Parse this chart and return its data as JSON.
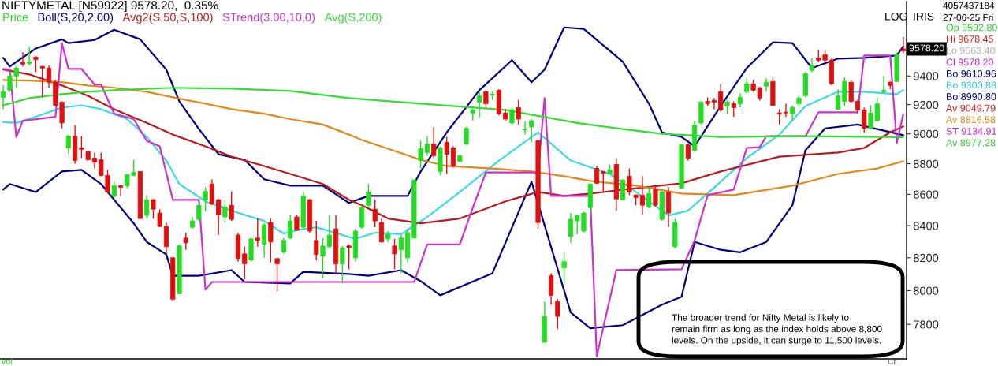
{
  "chart_data": {
    "type": "candlestick",
    "title": "NIFTYMETAL [N59922] 9578.20,  0.35%",
    "log": true,
    "categories": [
      null,
      null,
      null,
      null,
      null,
      null,
      null,
      null,
      null,
      null,
      null,
      null,
      null,
      null,
      null,
      null,
      null,
      null,
      null,
      null,
      null,
      null,
      null,
      null,
      null,
      null,
      null,
      null,
      null,
      null,
      null,
      null,
      null,
      null,
      null,
      null,
      null,
      null,
      null,
      null,
      null,
      null,
      null,
      null,
      null,
      null,
      null,
      null,
      null,
      null,
      null,
      null,
      null,
      null,
      null,
      null,
      null,
      null,
      null,
      null,
      null,
      null,
      null,
      null,
      null,
      null,
      null,
      null,
      null,
      null,
      null,
      null,
      null,
      null,
      null,
      null,
      null,
      null,
      null,
      null,
      null,
      null,
      null,
      null,
      null,
      null,
      null,
      null,
      null,
      null,
      null,
      null,
      null,
      null,
      null,
      null,
      null,
      null,
      null,
      null,
      null,
      null,
      null,
      null,
      null,
      null,
      null,
      null,
      null,
      null,
      null,
      null,
      null,
      null,
      null,
      null,
      null,
      null,
      null,
      null,
      null,
      null,
      null,
      null,
      null,
      null,
      null,
      null,
      null,
      null,
      null,
      null,
      null,
      null,
      null,
      null,
      null,
      null,
      null
    ],
    "ylim": [
      7600,
      9940
    ],
    "yticks": [
      7800,
      8000,
      8200,
      8400,
      8600,
      8800,
      9000,
      9200,
      9400
    ],
    "series": [
      {
        "name": "Price",
        "color": "#22dd22",
        "colors": [
          "#22dd22",
          "#22dd22",
          "#22dd22",
          "#e01010",
          "#22dd22",
          "#e01010",
          "#e01010",
          "#e01010",
          "#e01010",
          "#e01010",
          "#22dd22",
          "#e01010",
          "#e01010",
          "#e01010",
          "#e01010",
          "#e01010",
          "#e01010",
          "#22dd22",
          "#e01010",
          "#22dd22",
          "#22dd22",
          "#e01010",
          "#22dd22",
          "#e01010",
          "#e01010",
          "#e01010",
          "#e01010",
          "#22dd22",
          "#e01010",
          "#22dd22",
          "#22dd22",
          "#22dd22",
          "#e01010",
          "#e01010",
          "#22dd22",
          "#e01010",
          "#e01010",
          "#e01010",
          "#22dd22",
          "#e01010",
          "#22dd22",
          "#e01010",
          "#e01010",
          "#22dd22",
          "#22dd22",
          "#e01010",
          "#22dd22",
          "#e01010",
          "#e01010",
          "#22dd22",
          "#22dd22",
          "#e01010",
          "#22dd22",
          "#e01010",
          "#22dd22",
          "#22dd22",
          "#22dd22",
          "#e01010",
          "#e01010",
          "#22dd22",
          "#e01010",
          "#22dd22",
          "#22dd22",
          "#22dd22",
          "#22dd22",
          "#22dd22",
          "#e01010",
          "#22dd22",
          "#e01010",
          "#e01010",
          "#22dd22",
          "#22dd22",
          "#22dd22",
          "#22dd22",
          "#e01010",
          "#22dd22",
          "#e01010",
          "#e01010",
          "#22dd22",
          "#e01010",
          "#22dd22",
          "#22dd22",
          "#e01010",
          "#22dd22",
          "#e01010",
          "#e01010",
          "#22dd22",
          "#22dd22",
          "#22dd22",
          "#22dd22",
          "#22dd22",
          "#e01010",
          "#e01010",
          "#22dd22",
          "#e01010",
          "#22dd22",
          "#e01010",
          "#e01010",
          "#e01010",
          "#22dd22",
          "#e01010",
          "#22dd22",
          "#e01010",
          "#22dd22",
          "#22dd22",
          "#e01010",
          "#22dd22",
          "#22dd22",
          "#e01010",
          "#e01010",
          "#e01010",
          "#22dd22",
          "#e01010",
          "#22dd22",
          "#22dd22",
          "#e01010",
          "#e01010",
          "#22dd22",
          "#e01010",
          "#e01010",
          "#e01010",
          "#22dd22",
          "#22dd22",
          "#22dd22",
          "#22dd22",
          "#e01010",
          "#e01010",
          "#e01010",
          "#22dd22",
          "#22dd22",
          "#e01010",
          "#e01010",
          "#e01010",
          "#22dd22",
          "#22dd22",
          "#22dd22",
          "#e01010",
          "#22dd22",
          "#e01010"
        ],
        "ohlc": [
          [
            9250,
            9333,
            9168,
            9289
          ],
          [
            9300,
            9417,
            9289,
            9400
          ],
          [
            9400,
            9467,
            9317,
            9456
          ],
          [
            9500,
            9568,
            9467,
            9484
          ],
          [
            9489,
            9607,
            9473,
            9500
          ],
          [
            9534,
            9540,
            9428,
            9517
          ],
          [
            9467,
            9473,
            9250,
            9456
          ],
          [
            9456,
            9473,
            9317,
            9356
          ],
          [
            9356,
            9372,
            9190,
            9195
          ],
          [
            9217,
            9222,
            9037,
            9074
          ],
          [
            8905,
            8995,
            8863,
            8984
          ],
          [
            8984,
            9058,
            8800,
            8821
          ],
          [
            8905,
            8984,
            8837,
            8895
          ],
          [
            8879,
            8889,
            8821,
            8826
          ],
          [
            8837,
            8874,
            8769,
            8810
          ],
          [
            8826,
            8874,
            8718,
            8723
          ],
          [
            8723,
            8759,
            8605,
            8615
          ],
          [
            8590,
            8682,
            8580,
            8656
          ],
          [
            8656,
            8656,
            8590,
            8646
          ],
          [
            8656,
            8733,
            8641,
            8728
          ],
          [
            8723,
            8826,
            8718,
            8743
          ],
          [
            8749,
            8749,
            8440,
            8445
          ],
          [
            8465,
            8595,
            8445,
            8565
          ],
          [
            8565,
            8570,
            8445,
            8505
          ],
          [
            8480,
            8505,
            8390,
            8395
          ],
          [
            8395,
            8420,
            8220,
            8268
          ],
          [
            8200,
            8200,
            7940,
            7949
          ],
          [
            7981,
            8283,
            7981,
            8273
          ],
          [
            8322,
            8356,
            8249,
            8293
          ],
          [
            8390,
            8455,
            8380,
            8430
          ],
          [
            8440,
            8540,
            8430,
            8530
          ],
          [
            8565,
            8646,
            8490,
            8620
          ],
          [
            8667,
            8698,
            8530,
            8540
          ],
          [
            8565,
            8570,
            8341,
            8470
          ],
          [
            8455,
            8565,
            8420,
            8520
          ],
          [
            8530,
            8620,
            8430,
            8440
          ],
          [
            8341,
            8356,
            8176,
            8195
          ],
          [
            8224,
            8268,
            8067,
            8162
          ],
          [
            8186,
            8322,
            8176,
            8317
          ],
          [
            8322,
            8445,
            8268,
            8307
          ],
          [
            8283,
            8415,
            8200,
            8405
          ],
          [
            8420,
            8445,
            8171,
            8298
          ],
          [
            8195,
            8195,
            7995,
            8162
          ],
          [
            8234,
            8322,
            8224,
            8307
          ],
          [
            8322,
            8470,
            8317,
            8430
          ],
          [
            8455,
            8470,
            8366,
            8371
          ],
          [
            8390,
            8620,
            8380,
            8590
          ],
          [
            8565,
            8570,
            8356,
            8366
          ],
          [
            8307,
            8430,
            8186,
            8220
          ],
          [
            8210,
            8322,
            8076,
            8273
          ],
          [
            8268,
            8465,
            8259,
            8341
          ],
          [
            8380,
            8465,
            8100,
            8162
          ],
          [
            8162,
            8273,
            8043,
            8259
          ],
          [
            8273,
            8283,
            8129,
            8263
          ],
          [
            8200,
            8380,
            8176,
            8366
          ],
          [
            8390,
            8530,
            8380,
            8515
          ],
          [
            8530,
            8667,
            8520,
            8615
          ],
          [
            8505,
            8565,
            8390,
            8430
          ],
          [
            8420,
            8445,
            8293,
            8298
          ],
          [
            8317,
            8366,
            8298,
            8346
          ],
          [
            8273,
            8317,
            8129,
            8224
          ],
          [
            8249,
            8341,
            8105,
            8322
          ],
          [
            8200,
            8380,
            8171,
            8356
          ],
          [
            8322,
            8698,
            8322,
            8693
          ],
          [
            8821,
            8953,
            8769,
            8900
          ],
          [
            8874,
            8984,
            8853,
            8932
          ],
          [
            8932,
            9047,
            8837,
            8853
          ],
          [
            8749,
            8916,
            8723,
            8905
          ],
          [
            8942,
            8979,
            8733,
            8863
          ],
          [
            8905,
            8916,
            8774,
            8785
          ],
          [
            8816,
            8863,
            8810,
            8853
          ],
          [
            8932,
            9047,
            8926,
            9037
          ],
          [
            9142,
            9190,
            9089,
            9163
          ],
          [
            9217,
            9289,
            9110,
            9261
          ],
          [
            9289,
            9300,
            9179,
            9206
          ],
          [
            9267,
            9289,
            9233,
            9273
          ],
          [
            9300,
            9306,
            9126,
            9137
          ],
          [
            9142,
            9168,
            9089,
            9100
          ],
          [
            9074,
            9179,
            9063,
            9163
          ],
          [
            9179,
            9233,
            9063,
            9100
          ],
          [
            9026,
            9084,
            8995,
            9032
          ],
          [
            9047,
            9100,
            8942,
            9089
          ],
          [
            8953,
            8958,
            8380,
            8420
          ],
          [
            7695,
            7935,
            7695,
            7847
          ],
          [
            8090,
            8105,
            7916,
            7972
          ],
          [
            7935,
            7949,
            7772,
            7847
          ],
          [
            8138,
            8234,
            8043,
            8176
          ],
          [
            8332,
            8480,
            8293,
            8440
          ],
          [
            8430,
            8470,
            8346,
            8465
          ],
          [
            8366,
            8490,
            8356,
            8480
          ],
          [
            8515,
            8667,
            8480,
            8667
          ],
          [
            8769,
            8785,
            8667,
            8672
          ],
          [
            8749,
            8749,
            8621,
            8738
          ],
          [
            8733,
            8795,
            8733,
            8759
          ],
          [
            8795,
            8837,
            8495,
            8570
          ],
          [
            8565,
            8698,
            8560,
            8693
          ],
          [
            8718,
            8769,
            8595,
            8615
          ],
          [
            8595,
            8600,
            8530,
            8580
          ],
          [
            8595,
            8718,
            8470,
            8530
          ],
          [
            8520,
            8646,
            8510,
            8605
          ],
          [
            8636,
            8656,
            8520,
            8530
          ],
          [
            8440,
            8620,
            8430,
            8615
          ],
          [
            8615,
            8646,
            8390,
            8480
          ],
          [
            8268,
            8445,
            8259,
            8420
          ],
          [
            8641,
            8932,
            8636,
            8926
          ],
          [
            8926,
            8932,
            8821,
            8837
          ],
          [
            8889,
            9089,
            8879,
            9058
          ],
          [
            9074,
            9222,
            9063,
            9217
          ],
          [
            9222,
            9250,
            9190,
            9206
          ],
          [
            9228,
            9245,
            9168,
            9217
          ],
          [
            9289,
            9345,
            9152,
            9163
          ],
          [
            9190,
            9233,
            9137,
            9217
          ],
          [
            9206,
            9222,
            9116,
            9179
          ],
          [
            9206,
            9278,
            9179,
            9250
          ],
          [
            9289,
            9383,
            9273,
            9345
          ],
          [
            9345,
            9372,
            9289,
            9300
          ],
          [
            9317,
            9322,
            9228,
            9245
          ],
          [
            9328,
            9383,
            9289,
            9356
          ],
          [
            9361,
            9389,
            9190,
            9195
          ],
          [
            9142,
            9168,
            9063,
            9137
          ],
          [
            9148,
            9206,
            9116,
            9142
          ],
          [
            9137,
            9195,
            9089,
            9179
          ],
          [
            9206,
            9261,
            9179,
            9245
          ],
          [
            9261,
            9428,
            9250,
            9417
          ],
          [
            9439,
            9528,
            9428,
            9473
          ],
          [
            9528,
            9585,
            9500,
            9512
          ],
          [
            9551,
            9585,
            9500,
            9512
          ],
          [
            9512,
            9523,
            9333,
            9345
          ],
          [
            9168,
            9306,
            9163,
            9261
          ],
          [
            9222,
            9389,
            9190,
            9361
          ],
          [
            9356,
            9372,
            9211,
            9222
          ],
          [
            9222,
            9233,
            9137,
            9163
          ],
          [
            9163,
            9179,
            9010,
            9037
          ],
          [
            9037,
            9195,
            9032,
            9142
          ],
          [
            9089,
            9250,
            9084,
            9206
          ],
          [
            9289,
            9400,
            9278,
            9300
          ],
          [
            9356,
            9361,
            9306,
            9333
          ],
          [
            9361,
            9568,
            9361,
            9551
          ],
          [
            9592.8,
            9678.45,
            9563.4,
            9578.2
          ]
        ]
      },
      {
        "type": "line",
        "name": "Boll(S,20,2.00)",
        "color": "#00007f",
        "values": [
          9528,
          9467,
          null,
          null,
          null,
          9596,
          null,
          null,
          null,
          9662,
          9635,
          null,
          null,
          null,
          9657,
          null,
          null,
          9732,
          null,
          null,
          null,
          9662,
          null,
          null,
          null,
          9445,
          null,
          9222,
          null,
          null,
          9032,
          null,
          null,
          8863,
          null,
          null,
          null,
          8826,
          null,
          null,
          8698,
          null,
          null,
          null,
          8656,
          null,
          null,
          null,
          null,
          8656,
          null,
          null,
          null,
          8545,
          null,
          null,
          8590,
          null,
          null,
          null,
          null,
          null,
          8590,
          null,
          8749,
          null,
          null,
          null,
          9010,
          null,
          null,
          null,
          null,
          9300,
          null,
          null,
          null,
          null,
          9512,
          null,
          null,
          9356,
          null,
          9445,
          null,
          null,
          9749,
          null,
          null,
          9738,
          null,
          null,
          null,
          null,
          null,
          9500,
          null,
          null,
          null,
          9206,
          null,
          9010,
          null,
          null,
          8979,
          null,
          8916,
          null,
          null,
          null,
          9190,
          null,
          null,
          null,
          9456,
          null,
          null,
          null,
          9640,
          null,
          null,
          9635,
          null,
          null,
          9456,
          null,
          null,
          null,
          9523,
          null,
          null,
          null,
          9528,
          null,
          null,
          null,
          null,
          9545,
          9612
        ]
      },
      {
        "type": "line",
        "color": "#3fd9e6",
        "values": [
          9079,
          null,
          9074,
          null,
          null,
          9116,
          null,
          null,
          null,
          9179,
          null,
          null,
          9195,
          null,
          null,
          9168,
          null,
          null,
          null,
          9100,
          null,
          null,
          8979,
          null,
          null,
          8821,
          null,
          8667,
          null,
          null,
          null,
          8555,
          null,
          null,
          null,
          8495,
          null,
          null,
          null,
          null,
          8430,
          null,
          null,
          8351,
          null,
          8371,
          null,
          null,
          8390,
          null,
          null,
          null,
          null,
          null,
          8317,
          null,
          null,
          8356,
          null,
          null,
          null,
          8346,
          null,
          null,
          null,
          8455,
          null,
          null,
          null,
          null,
          8615,
          null,
          null,
          null,
          null,
          null,
          8821,
          null,
          null,
          null,
          null,
          null,
          9010,
          null,
          null,
          null,
          null,
          8821,
          null,
          null,
          null,
          null,
          null,
          8733,
          null,
          null,
          null,
          8615,
          null,
          null,
          null,
          null,
          8465,
          null,
          null,
          8495,
          null,
          null,
          null,
          null,
          8682,
          null,
          null,
          null,
          8837,
          null,
          null,
          null,
          null,
          8995,
          null,
          null,
          null,
          9190,
          null,
          null,
          null,
          null,
          9289,
          null,
          null,
          null,
          9289,
          null,
          null,
          null,
          null,
          9272,
          9301
        ]
      },
      {
        "type": "line",
        "color": "#00007f",
        "values": [
          8631,
          8667,
          null,
          null,
          null,
          8615,
          null,
          null,
          null,
          8749,
          null,
          null,
          8759,
          null,
          null,
          8667,
          null,
          null,
          null,
          null,
          8415,
          null,
          8298,
          null,
          null,
          8220,
          8090,
          null,
          null,
          null,
          8090,
          null,
          null,
          null,
          null,
          8124,
          null,
          8052,
          null,
          null,
          null,
          null,
          null,
          null,
          8043,
          null,
          8114,
          null,
          null,
          null,
          null,
          null,
          null,
          8100,
          null,
          null,
          8090,
          null,
          null,
          null,
          null,
          8124,
          null,
          null,
          8057,
          null,
          null,
          7972,
          null,
          null,
          null,
          null,
          null,
          null,
          null,
          8105,
          null,
          null,
          null,
          null,
          null,
          8682,
          null,
          null,
          null,
          null,
          null,
          7870,
          null,
          null,
          7777,
          null,
          null,
          null,
          null,
          7795,
          null,
          null,
          null,
          null,
          null,
          7916,
          null,
          null,
          7963,
          null,
          8298,
          null,
          null,
          null,
          8249,
          null,
          null,
          8234,
          null,
          null,
          null,
          8298,
          null,
          null,
          null,
          8530,
          null,
          8889,
          null,
          null,
          9037,
          null,
          null,
          null,
          null,
          9063,
          null,
          null,
          9032,
          null,
          null,
          null,
          8991
        ]
      },
      {
        "type": "line",
        "name": "Avg2(S,50,S,100)",
        "color": "#b81c1c",
        "values": [
          9445,
          null,
          null,
          null,
          9411,
          null,
          null,
          null,
          null,
          9333,
          null,
          null,
          null,
          9261,
          null,
          null,
          null,
          9168,
          null,
          null,
          null,
          null,
          9074,
          null,
          null,
          null,
          8995,
          null,
          null,
          null,
          null,
          8916,
          null,
          null,
          null,
          8847,
          null,
          null,
          null,
          null,
          8785,
          null,
          null,
          null,
          8733,
          null,
          null,
          null,
          null,
          8667,
          null,
          null,
          null,
          8565,
          null,
          8530,
          null,
          null,
          null,
          8445,
          null,
          null,
          null,
          null,
          8415,
          null,
          null,
          null,
          null,
          null,
          8445,
          null,
          null,
          null,
          null,
          null,
          null,
          8555,
          null,
          null,
          null,
          null,
          8615,
          null,
          null,
          null,
          8590,
          null,
          null,
          null,
          8605,
          null,
          null,
          null,
          null,
          8630,
          null,
          null,
          null,
          null,
          null,
          null,
          null,
          null,
          8672,
          null,
          null,
          null,
          null,
          null,
          8749,
          null,
          null,
          null,
          null,
          null,
          null,
          null,
          null,
          8847,
          null,
          null,
          null,
          null,
          null,
          null,
          null,
          null,
          8874,
          null,
          null,
          null,
          8905,
          null,
          null,
          null,
          9010,
          null,
          9050
        ]
      },
      {
        "type": "line",
        "color": "#e0891c",
        "values": [
          9372,
          null,
          null,
          null,
          9367,
          null,
          null,
          null,
          null,
          9356,
          null,
          null,
          null,
          9333,
          null,
          null,
          null,
          9317,
          null,
          null,
          null,
          null,
          9289,
          null,
          null,
          null,
          9250,
          null,
          null,
          null,
          null,
          9206,
          null,
          null,
          null,
          9168,
          null,
          null,
          null,
          null,
          9137,
          null,
          null,
          null,
          9100,
          null,
          null,
          null,
          null,
          9063,
          null,
          null,
          null,
          8995,
          null,
          8958,
          null,
          null,
          null,
          8900,
          null,
          null,
          null,
          null,
          8826,
          null,
          null,
          null,
          8785,
          null,
          null,
          null,
          null,
          null,
          null,
          8769,
          null,
          null,
          null,
          null,
          null,
          8749,
          null,
          null,
          null,
          null,
          8718,
          null,
          null,
          null,
          8687,
          null,
          null,
          null,
          null,
          null,
          null,
          8656,
          null,
          null,
          null,
          null,
          null,
          null,
          8605,
          null,
          null,
          null,
          null,
          null,
          null,
          null,
          8595,
          null,
          null,
          null,
          null,
          null,
          null,
          null,
          null,
          8656,
          null,
          null,
          null,
          null,
          null,
          null,
          8733,
          null,
          null,
          null,
          null,
          null,
          8769,
          null,
          null,
          null,
          8817
        ]
      },
      {
        "type": "line",
        "name": "STrend(3.00,10,0)",
        "color": "#cc33cc",
        "values": [
          9450,
          9445,
          8979,
          9089,
          null,
          null,
          null,
          null,
          9116,
          9635,
          9450,
          null,
          9450,
          null,
          9339,
          9339,
          null,
          9137,
          null,
          null,
          9100,
          null,
          8953,
          null,
          8916,
          null,
          8565,
          null,
          null,
          null,
          8565,
          8005,
          8052,
          null,
          null,
          null,
          null,
          null,
          null,
          null,
          null,
          null,
          null,
          null,
          null,
          null,
          null,
          null,
          null,
          null,
          null,
          null,
          null,
          8052,
          null,
          null,
          null,
          null,
          null,
          null,
          null,
          null,
          null,
          8052,
          null,
          8283,
          null,
          null,
          null,
          null,
          8283,
          null,
          8515,
          null,
          8743,
          null,
          null,
          null,
          null,
          null,
          null,
          null,
          8743,
          9245,
          8590,
          null,
          null,
          null,
          null,
          null,
          8590,
          7615,
          null,
          null,
          8124,
          null,
          null,
          null,
          null,
          null,
          null,
          null,
          null,
          null,
          8129,
          null,
          8307,
          null,
          8595,
          null,
          null,
          null,
          8631,
          null,
          8905,
          null,
          8910,
          8984,
          null,
          null,
          null,
          null,
          null,
          8984,
          null,
          9147,
          null,
          null,
          null,
          null,
          null,
          9147,
          9545,
          null,
          null,
          null,
          9545,
          8937,
          9135
        ]
      },
      {
        "type": "line",
        "name": "Avg(S,200)",
        "color": "#33dd33",
        "values": [
          9195,
          null,
          null,
          null,
          9245,
          null,
          null,
          null,
          null,
          9272,
          null,
          null,
          null,
          9289,
          null,
          null,
          null,
          9300,
          null,
          null,
          null,
          null,
          null,
          null,
          null,
          null,
          9317,
          null,
          null,
          null,
          null,
          null,
          null,
          null,
          null,
          9311,
          null,
          null,
          null,
          null,
          null,
          null,
          null,
          null,
          9294,
          null,
          null,
          null,
          null,
          null,
          null,
          null,
          null,
          9245,
          null,
          null,
          null,
          null,
          null,
          null,
          null,
          null,
          null,
          null,
          9206,
          null,
          null,
          null,
          null,
          null,
          null,
          null,
          null,
          null,
          null,
          null,
          null,
          9163,
          null,
          null,
          null,
          null,
          null,
          null,
          null,
          null,
          null,
          null,
          9074,
          null,
          null,
          null,
          null,
          null,
          null,
          9032,
          null,
          null,
          null,
          null,
          null,
          9000,
          null,
          null,
          null,
          null,
          null,
          null,
          null,
          null,
          8979,
          null,
          null,
          null,
          null,
          null,
          null,
          null,
          null,
          null,
          null,
          null,
          null,
          8984,
          null,
          null,
          null,
          null,
          null,
          null,
          null,
          null,
          null,
          null,
          null,
          null,
          null,
          null,
          8977
        ]
      }
    ],
    "annotations": [
      "LOG",
      "IRIS",
      "4057437184",
      "27-06-25 Fri",
      "Op 9592.80",
      "Hi 9678.45",
      "Lo 9563.40",
      "Cl 9578.20",
      "Bo 9610.96",
      "Bo 9300.88",
      "Bo 8990.80",
      "Av 9049.79",
      "Av 8816.58",
      "ST 9134.91",
      "Av 8977.28",
      "9578.20",
      "The broader trend for Nifty Metal is likely to\nremain firm as long as the index holds above 8,800\nlevels. On the upside, it can surge to 11,500 levels.",
      "Vol",
      "Cr"
    ]
  }
}
